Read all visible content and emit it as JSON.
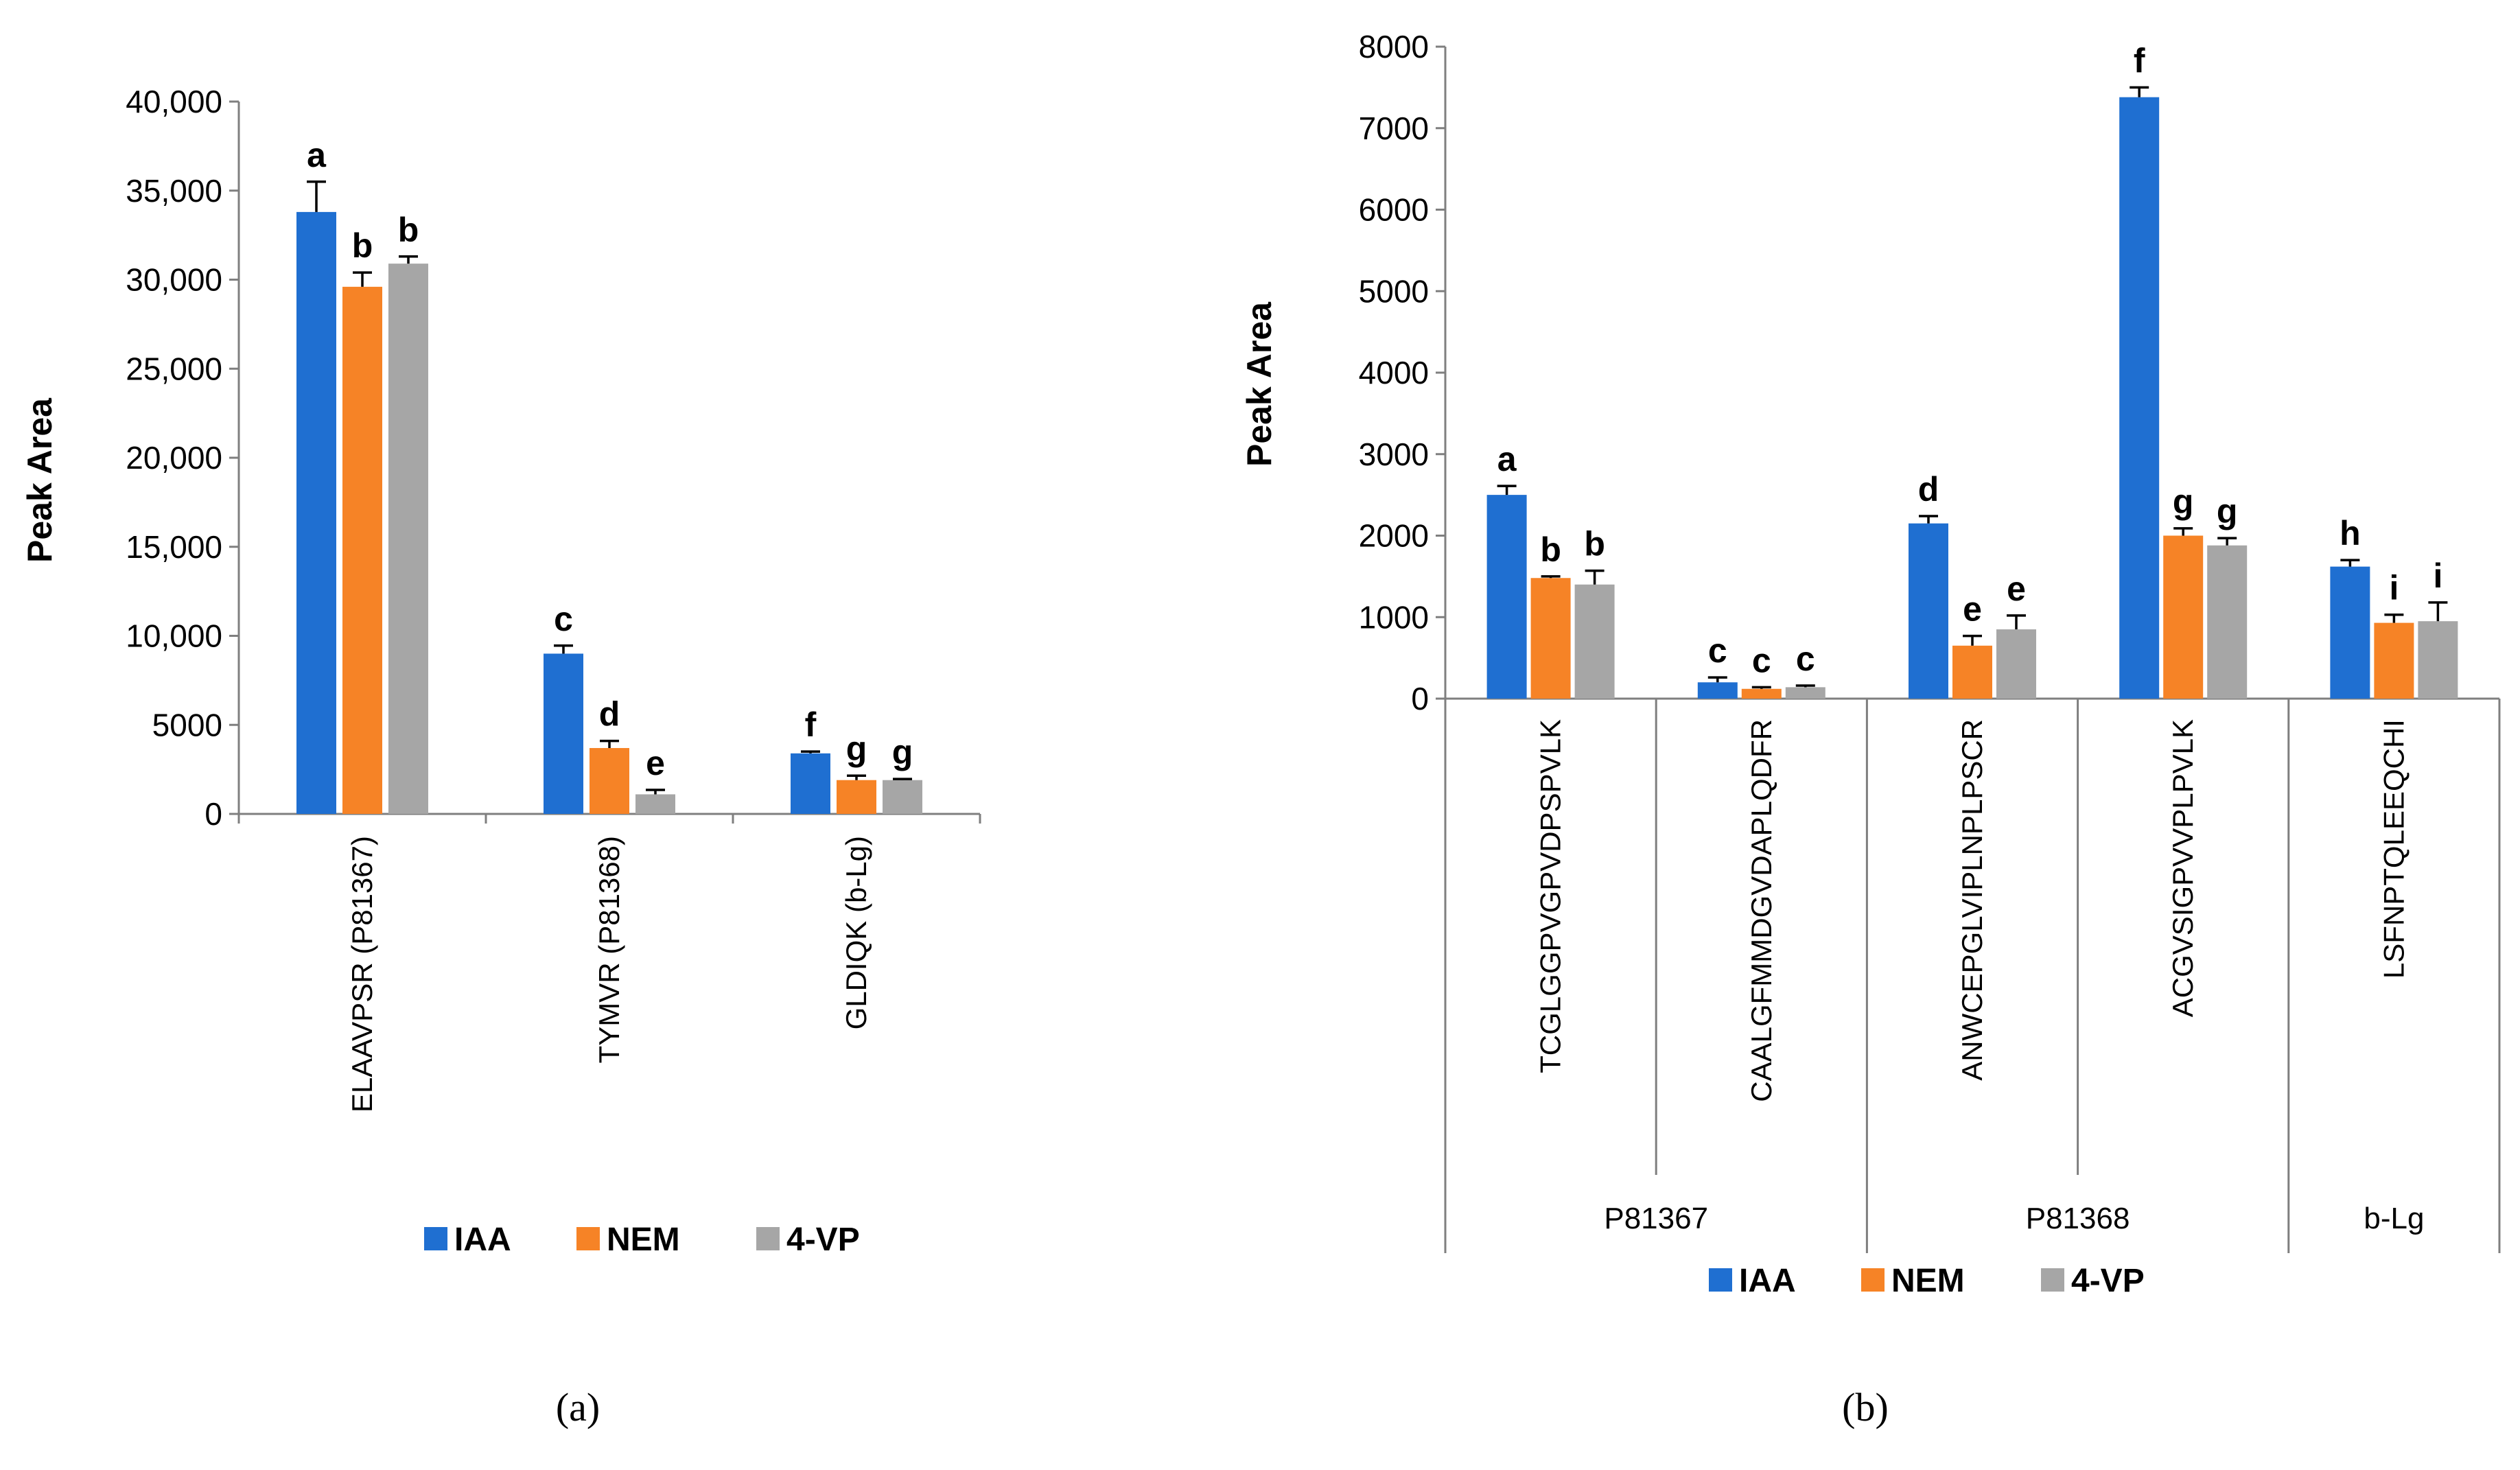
{
  "colors": {
    "IAA": "#1f6fd1",
    "NEM": "#f68326",
    "4-VP": "#a6a6a6"
  },
  "series_names": [
    "IAA",
    "NEM",
    "4-VP"
  ],
  "chart_data": [
    {
      "type": "bar",
      "panel_label": "(a)",
      "ylabel": "Peak   Area",
      "ylim": [
        0,
        40000
      ],
      "yticks": [
        0,
        5000,
        10000,
        15000,
        20000,
        25000,
        30000,
        35000,
        40000
      ],
      "ytick_labels": [
        "0",
        "5000",
        "10,000",
        "15,000",
        "20,000",
        "25,000",
        "30,000",
        "35,000",
        "40,000"
      ],
      "categories": [
        "ELAAVPSR (P81367)",
        "TYMVR (P81368)",
        "GLDIQK (b-Lg)"
      ],
      "legend": "bottom",
      "series": [
        {
          "name": "IAA",
          "values": [
            33800,
            9000,
            3400
          ],
          "errors": [
            1700,
            450,
            100
          ],
          "letters": [
            "a",
            "c",
            "f"
          ]
        },
        {
          "name": "NEM",
          "values": [
            29600,
            3700,
            1900
          ],
          "errors": [
            800,
            400,
            250
          ],
          "letters": [
            "b",
            "d",
            "g"
          ]
        },
        {
          "name": "4-VP",
          "values": [
            30900,
            1100,
            1900
          ],
          "errors": [
            400,
            250,
            60
          ],
          "letters": [
            "b",
            "e",
            "g"
          ]
        }
      ]
    },
    {
      "type": "bar",
      "panel_label": "(b)",
      "ylabel": "Peak   Area",
      "ylim": [
        0,
        8000
      ],
      "yticks": [
        0,
        1000,
        2000,
        3000,
        4000,
        5000,
        6000,
        7000,
        8000
      ],
      "ytick_labels": [
        "0",
        "1000",
        "2000",
        "3000",
        "4000",
        "5000",
        "6000",
        "7000",
        "8000"
      ],
      "categories": [
        "TCGLGGPVGPVDPSPVLK",
        "CAALGFMMDGVDAPLQDFR",
        "ANWCEPGLVIPLNPLPSCR",
        "ACGVSIGPVVPLPVLK",
        "LSFNPTQLEEQCHI"
      ],
      "groups": [
        {
          "label": "P81367",
          "span": [
            0,
            1
          ]
        },
        {
          "label": "P81368",
          "span": [
            2,
            3
          ]
        },
        {
          "label": "b-Lg",
          "span": [
            4,
            4
          ]
        }
      ],
      "legend": "bottom",
      "series": [
        {
          "name": "IAA",
          "values": [
            2500,
            200,
            2150,
            7380,
            1620
          ],
          "errors": [
            110,
            60,
            90,
            120,
            80
          ],
          "letters": [
            "a",
            "c",
            "d",
            "f",
            "h"
          ]
        },
        {
          "name": "NEM",
          "values": [
            1480,
            120,
            650,
            2000,
            930
          ],
          "errors": [
            20,
            20,
            120,
            90,
            100
          ],
          "letters": [
            "b",
            "c",
            "e",
            "g",
            "i"
          ]
        },
        {
          "name": "4-VP",
          "values": [
            1400,
            140,
            850,
            1880,
            950
          ],
          "errors": [
            170,
            20,
            170,
            90,
            230
          ],
          "letters": [
            "b",
            "c",
            "e",
            "g",
            "i"
          ]
        }
      ]
    }
  ]
}
